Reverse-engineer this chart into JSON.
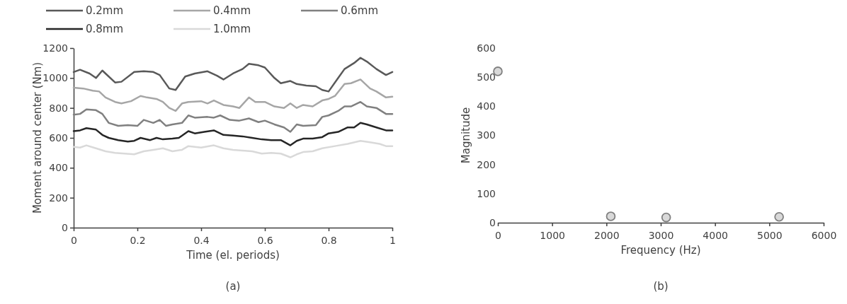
{
  "chart_data": [
    {
      "type": "line",
      "xlabel": "Time (el. periods)",
      "ylabel": "Moment around center (Nm)",
      "annotations": [
        "(a)"
      ],
      "xlim": [
        0,
        1
      ],
      "xticks": [
        0,
        0.2,
        0.4,
        0.6,
        0.8,
        1
      ],
      "ylim": [
        0,
        1200
      ],
      "yticks": [
        0,
        200,
        400,
        600,
        800,
        1000,
        1200
      ],
      "legend": "top",
      "marker": "none",
      "line_style": "solid",
      "series": [
        {
          "name": "0.2mm",
          "color": "#595959",
          "x": [
            0,
            0.02,
            0.05,
            0.07,
            0.09,
            0.1,
            0.13,
            0.15,
            0.19,
            0.22,
            0.25,
            0.27,
            0.3,
            0.32,
            0.35,
            0.38,
            0.42,
            0.45,
            0.47,
            0.5,
            0.53,
            0.55,
            0.58,
            0.6,
            0.63,
            0.65,
            0.68,
            0.7,
            0.73,
            0.76,
            0.78,
            0.8,
            0.83,
            0.85,
            0.88,
            0.9,
            0.92,
            0.95,
            0.98,
            1
          ],
          "values": [
            1040,
            1055,
            1030,
            1000,
            1050,
            1030,
            970,
            975,
            1040,
            1045,
            1040,
            1020,
            930,
            920,
            1010,
            1030,
            1045,
            1015,
            990,
            1030,
            1060,
            1095,
            1085,
            1070,
            1000,
            965,
            980,
            960,
            950,
            945,
            920,
            910,
            1000,
            1060,
            1100,
            1135,
            1110,
            1060,
            1020,
            1040
          ]
        },
        {
          "name": "0.4mm",
          "color": "#a6a6a6",
          "x": [
            0,
            0.03,
            0.06,
            0.08,
            0.1,
            0.13,
            0.15,
            0.18,
            0.21,
            0.23,
            0.26,
            0.28,
            0.3,
            0.32,
            0.34,
            0.36,
            0.4,
            0.42,
            0.44,
            0.47,
            0.5,
            0.52,
            0.55,
            0.57,
            0.6,
            0.63,
            0.66,
            0.68,
            0.7,
            0.72,
            0.75,
            0.78,
            0.8,
            0.82,
            0.85,
            0.87,
            0.9,
            0.93,
            0.95,
            0.98,
            1
          ],
          "values": [
            935,
            930,
            915,
            910,
            870,
            840,
            830,
            845,
            880,
            870,
            860,
            840,
            800,
            780,
            830,
            840,
            845,
            830,
            850,
            820,
            810,
            800,
            870,
            840,
            840,
            810,
            800,
            830,
            800,
            820,
            810,
            850,
            860,
            880,
            960,
            965,
            990,
            930,
            910,
            870,
            875
          ]
        },
        {
          "name": "0.6mm",
          "color": "#808080",
          "x": [
            0,
            0.02,
            0.04,
            0.07,
            0.09,
            0.11,
            0.14,
            0.17,
            0.2,
            0.22,
            0.25,
            0.27,
            0.29,
            0.31,
            0.34,
            0.36,
            0.38,
            0.42,
            0.44,
            0.46,
            0.49,
            0.52,
            0.55,
            0.58,
            0.6,
            0.63,
            0.66,
            0.68,
            0.7,
            0.72,
            0.76,
            0.78,
            0.8,
            0.83,
            0.85,
            0.87,
            0.9,
            0.92,
            0.95,
            0.98,
            1
          ],
          "values": [
            755,
            760,
            790,
            785,
            760,
            700,
            680,
            685,
            680,
            720,
            700,
            720,
            680,
            690,
            700,
            750,
            735,
            740,
            735,
            750,
            720,
            715,
            730,
            705,
            715,
            690,
            670,
            640,
            690,
            680,
            685,
            740,
            750,
            780,
            810,
            810,
            840,
            810,
            800,
            760,
            760
          ]
        },
        {
          "name": "0.8mm",
          "color": "#262626",
          "x": [
            0,
            0.02,
            0.04,
            0.07,
            0.09,
            0.11,
            0.14,
            0.17,
            0.19,
            0.21,
            0.24,
            0.26,
            0.28,
            0.31,
            0.33,
            0.36,
            0.38,
            0.41,
            0.44,
            0.47,
            0.5,
            0.53,
            0.56,
            0.59,
            0.62,
            0.65,
            0.68,
            0.7,
            0.72,
            0.75,
            0.78,
            0.8,
            0.83,
            0.86,
            0.88,
            0.9,
            0.92,
            0.95,
            0.98,
            1
          ],
          "values": [
            645,
            650,
            665,
            655,
            620,
            600,
            585,
            575,
            580,
            600,
            585,
            600,
            590,
            595,
            600,
            645,
            630,
            640,
            650,
            620,
            615,
            610,
            600,
            590,
            585,
            585,
            550,
            580,
            595,
            595,
            605,
            630,
            640,
            670,
            670,
            700,
            690,
            670,
            650,
            650
          ]
        },
        {
          "name": "1.0mm",
          "color": "#d9d9d9",
          "x": [
            0,
            0.02,
            0.04,
            0.07,
            0.1,
            0.13,
            0.16,
            0.19,
            0.22,
            0.25,
            0.28,
            0.31,
            0.34,
            0.36,
            0.4,
            0.44,
            0.47,
            0.5,
            0.53,
            0.56,
            0.59,
            0.62,
            0.65,
            0.68,
            0.7,
            0.72,
            0.75,
            0.78,
            0.82,
            0.86,
            0.9,
            0.93,
            0.96,
            0.98,
            1
          ],
          "values": [
            540,
            535,
            550,
            530,
            510,
            500,
            495,
            490,
            510,
            520,
            530,
            510,
            520,
            545,
            535,
            550,
            530,
            520,
            515,
            510,
            495,
            500,
            495,
            470,
            490,
            505,
            510,
            530,
            545,
            560,
            580,
            570,
            560,
            545,
            545
          ]
        }
      ]
    },
    {
      "type": "scatter",
      "xlabel": "Frequency (Hz)",
      "ylabel": "Magnitude",
      "annotations": [
        "(b)"
      ],
      "xlim": [
        0,
        6000
      ],
      "xticks": [
        0,
        1000,
        2000,
        3000,
        4000,
        5000,
        6000
      ],
      "ylim": [
        0,
        600
      ],
      "yticks": [
        0,
        100,
        200,
        300,
        400,
        500,
        600
      ],
      "marker": "circle",
      "series": [
        {
          "color": "#808080",
          "x": [
            0,
            2080,
            3100,
            5180
          ],
          "values": [
            520,
            22,
            18,
            20
          ]
        }
      ]
    }
  ]
}
